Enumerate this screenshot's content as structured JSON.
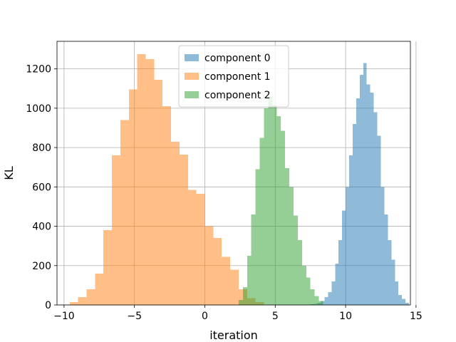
{
  "chart_data": {
    "type": "histogram",
    "xlabel": "iteration",
    "ylabel": "KL",
    "xlim": [
      -10.5,
      14.6
    ],
    "ylim": [
      0,
      1340
    ],
    "x_ticks": [
      -10,
      -5,
      0,
      5,
      10,
      15
    ],
    "x_tick_labels": [
      "−10",
      "−5",
      "0",
      "5",
      "10",
      "15"
    ],
    "y_ticks": [
      0,
      200,
      400,
      600,
      800,
      1000,
      1200
    ],
    "y_tick_labels": [
      "0",
      "200",
      "400",
      "600",
      "800",
      "1000",
      "1200"
    ],
    "grid": true,
    "legend_position": "top-center",
    "series": [
      {
        "name": "component 0",
        "color": "#1f77b4",
        "alpha": 0.5,
        "bin_width": 0.25,
        "bin_edges_start": 7.5,
        "counts": [
          3,
          5,
          10,
          20,
          40,
          65,
          120,
          210,
          330,
          480,
          600,
          760,
          920,
          1050,
          1170,
          1230,
          1120,
          1080,
          980,
          860,
          600,
          460,
          330,
          230,
          120,
          50,
          30,
          10
        ]
      },
      {
        "name": "component 1",
        "color": "#ff7f0e",
        "alpha": 0.5,
        "bin_width": 0.6,
        "bin_edges_start": -9.6,
        "counts": [
          15,
          40,
          80,
          160,
          380,
          760,
          940,
          1095,
          1275,
          1250,
          1145,
          1010,
          830,
          765,
          585,
          565,
          400,
          340,
          245,
          180,
          80,
          35,
          15
        ]
      },
      {
        "name": "component 2",
        "color": "#2ca02c",
        "alpha": 0.5,
        "bin_width": 0.3,
        "bin_edges_start": 2.4,
        "counts": [
          25,
          90,
          250,
          460,
          690,
          850,
          1000,
          1060,
          1015,
          960,
          885,
          695,
          600,
          455,
          330,
          200,
          140,
          80,
          45,
          20
        ]
      }
    ]
  }
}
